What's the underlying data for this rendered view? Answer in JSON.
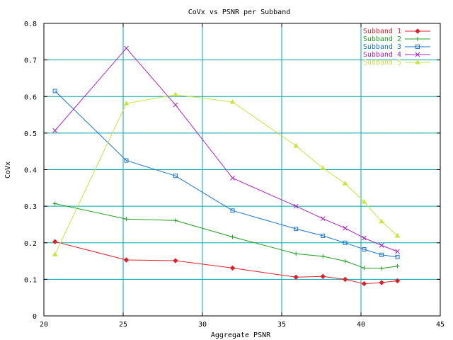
{
  "chart_data": {
    "type": "line",
    "title": "CoVx vs PSNR per Subband",
    "xlabel": "Aggregate PSNR",
    "ylabel": "CoVx",
    "xlim": [
      20,
      45
    ],
    "ylim": [
      0,
      0.8
    ],
    "x_ticks": [
      "20",
      "25",
      "30",
      "35",
      "40",
      "45"
    ],
    "y_ticks": [
      "0",
      "0.1",
      "0.2",
      "0.3",
      "0.4",
      "0.5",
      "0.6",
      "0.7",
      "0.8"
    ],
    "grid": true,
    "legend_position": "top-right",
    "colors": {
      "grid": "#00a8a8",
      "axes": "#000000"
    },
    "series": [
      {
        "name": "Subband 1",
        "color": "#e0202a",
        "marker": "diamond",
        "x": [
          20.7,
          25.2,
          28.3,
          31.9,
          35.9,
          37.6,
          39.0,
          40.2,
          41.3,
          42.3
        ],
        "y": [
          0.203,
          0.153,
          0.151,
          0.131,
          0.106,
          0.108,
          0.1,
          0.088,
          0.091,
          0.096
        ]
      },
      {
        "name": "Subband 2",
        "color": "#20a020",
        "marker": "plus",
        "x": [
          20.7,
          25.2,
          28.3,
          31.9,
          35.9,
          37.6,
          39.0,
          40.2,
          41.3,
          42.3
        ],
        "y": [
          0.307,
          0.265,
          0.261,
          0.216,
          0.17,
          0.163,
          0.15,
          0.131,
          0.13,
          0.136
        ]
      },
      {
        "name": "Subband 3",
        "color": "#1874d0",
        "marker": "square",
        "x": [
          20.7,
          25.2,
          28.3,
          31.9,
          35.9,
          37.6,
          39.0,
          40.2,
          41.3,
          42.3
        ],
        "y": [
          0.615,
          0.425,
          0.383,
          0.288,
          0.238,
          0.219,
          0.2,
          0.182,
          0.167,
          0.161
        ]
      },
      {
        "name": "Subband 4",
        "color": "#b020c0",
        "marker": "cross",
        "x": [
          20.7,
          25.2,
          28.3,
          31.9,
          35.9,
          37.6,
          39.0,
          40.2,
          41.3,
          42.3
        ],
        "y": [
          0.507,
          0.732,
          0.577,
          0.377,
          0.3,
          0.266,
          0.24,
          0.213,
          0.193,
          0.176
        ]
      },
      {
        "name": "Subband 5",
        "color": "#c8e440",
        "marker": "triangle",
        "x": [
          20.7,
          25.2,
          28.3,
          31.9,
          35.9,
          37.6,
          39.0,
          40.2,
          41.3,
          42.3
        ],
        "y": [
          0.168,
          0.581,
          0.605,
          0.585,
          0.465,
          0.404,
          0.362,
          0.312,
          0.258,
          0.219
        ]
      }
    ]
  }
}
